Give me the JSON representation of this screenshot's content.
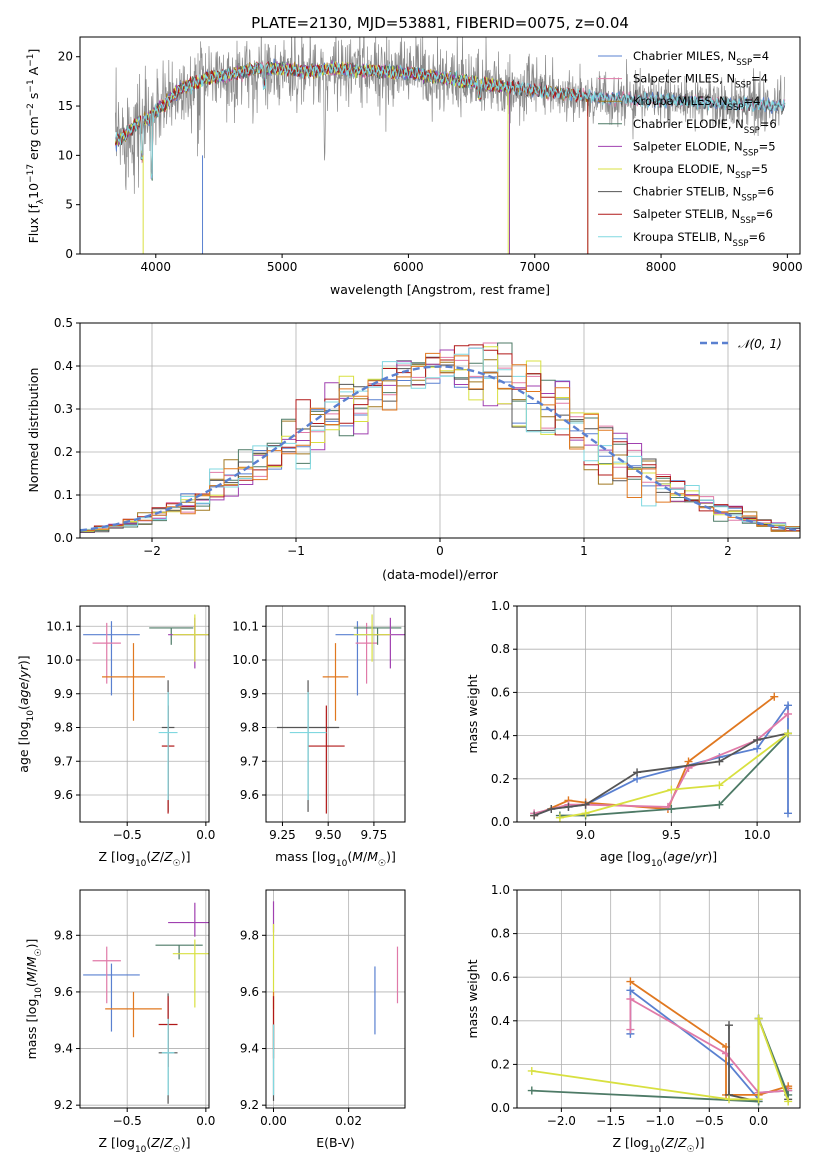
{
  "figure_title": "PLATE=2130, MJD=53881, FIBERID=0075, z=0.04",
  "colors": {
    "chabrier_miles": "#5a80d0",
    "salpeter_miles": "#e07aa8",
    "kroupa_miles": "#a07820",
    "chabrier_elodie": "#4d7a66",
    "salpeter_elodie": "#a040b0",
    "kroupa_elodie": "#d8e040",
    "chabrier_stelib": "#555555",
    "salpeter_stelib": "#b01818",
    "kroupa_stelib": "#80d8e0",
    "orange": "#e07820",
    "yellowgreen": "#b8d850",
    "gray_spectrum": "#8a8a8a"
  },
  "chart_data": [
    {
      "id": "spectrum",
      "type": "line",
      "title": "PLATE=2130, MJD=53881, FIBERID=0075, z=0.04",
      "xlabel": "wavelength [Angstrom, rest frame]",
      "ylabel": "Flux [f_λ 10^-17 erg cm^-2 s^-1 A^-1]",
      "xlim": [
        3400,
        9100
      ],
      "ylim": [
        0,
        22
      ],
      "xticks": [
        4000,
        5000,
        6000,
        7000,
        8000,
        9000
      ],
      "yticks": [
        0,
        5,
        10,
        15,
        20
      ],
      "legend_position": "top-right",
      "legend": [
        {
          "label": "Chabrier MILES, N_SSP=4",
          "color_key": "chabrier_miles"
        },
        {
          "label": "Salpeter MILES, N_SSP=4",
          "color_key": "salpeter_miles"
        },
        {
          "label": "Kroupa MILES, N_SSP=4",
          "color_key": "kroupa_miles"
        },
        {
          "label": "Chabrier ELODIE, N_SSP=6",
          "color_key": "chabrier_elodie"
        },
        {
          "label": "Salpeter ELODIE, N_SSP=5",
          "color_key": "salpeter_elodie"
        },
        {
          "label": "Kroupa ELODIE, N_SSP=5",
          "color_key": "kroupa_elodie"
        },
        {
          "label": "Chabrier STELIB, N_SSP=6",
          "color_key": "chabrier_stelib"
        },
        {
          "label": "Salpeter STELIB, N_SSP=6",
          "color_key": "salpeter_stelib"
        },
        {
          "label": "Kroupa STELIB, N_SSP=6",
          "color_key": "kroupa_stelib"
        }
      ],
      "continuum": {
        "x": [
          3680,
          3750,
          3850,
          3950,
          4050,
          4200,
          4400,
          4600,
          4800,
          5000,
          5200,
          5400,
          5600,
          5800,
          6000,
          6200,
          6400,
          6600,
          6800,
          7000,
          7200,
          7400,
          7600,
          7800,
          8000,
          8200,
          8400,
          8600,
          8800,
          8980
        ],
        "y": [
          11.5,
          12.0,
          13.2,
          13.8,
          15.0,
          16.8,
          17.8,
          18.2,
          18.8,
          18.8,
          18.5,
          18.8,
          18.6,
          18.5,
          18.4,
          18.0,
          17.6,
          17.2,
          16.9,
          16.6,
          16.3,
          16.0,
          15.8,
          15.7,
          15.6,
          15.5,
          15.3,
          15.2,
          15.1,
          15.0
        ]
      },
      "model_cutoffs": [
        {
          "series": "Salpeter STELIB / Kroupa MILES",
          "x": 7420
        },
        {
          "series": "Chabrier ELODIE",
          "x": 6800
        },
        {
          "series": "Kroupa ELODIE",
          "x": 6790
        },
        {
          "series": "Chabrier MILES",
          "x": 4370
        },
        {
          "series": "Kroupa ELODIE",
          "x": 3900
        }
      ]
    },
    {
      "id": "residuals",
      "type": "line",
      "xlabel": "(data-model)/error",
      "ylabel": "Normed distribution",
      "xlim": [
        -2.5,
        2.5
      ],
      "ylim": [
        0,
        0.5
      ],
      "xticks": [
        -2,
        -1,
        0,
        1,
        2
      ],
      "yticks": [
        0.0,
        0.1,
        0.2,
        0.3,
        0.4,
        0.5
      ],
      "legend_position": "top-right",
      "legend": [
        {
          "label": "𝒩(0, 1)",
          "color_key": "chabrier_miles",
          "style": "dashed"
        }
      ],
      "grid": true,
      "normal_curve": {
        "mean": 0,
        "sigma": 1
      },
      "histogram_bin_width": 0.1
    },
    {
      "id": "age_vs_Z",
      "type": "scatter",
      "xlabel": "Z [log10(Z/Z☉)]",
      "ylabel": "age  [log10(age/yr)]",
      "xlim": [
        -0.8,
        0.02
      ],
      "ylim": [
        9.52,
        10.16
      ],
      "xticks": [
        -0.5,
        0.0
      ],
      "yticks": [
        9.6,
        9.7,
        9.8,
        9.9,
        10.0,
        10.1
      ],
      "grid": true,
      "points": [
        {
          "x": -0.6,
          "y": 10.075,
          "xerr": 0.18,
          "yerr_lo": 0.18,
          "yerr_hi": 0.04,
          "color_key": "chabrier_miles"
        },
        {
          "x": -0.63,
          "y": 10.05,
          "xerr": 0.09,
          "yerr_lo": 0.12,
          "yerr_hi": 0.06,
          "color_key": "salpeter_miles"
        },
        {
          "x": -0.46,
          "y": 9.95,
          "xerr": 0.2,
          "yerr_lo": 0.13,
          "yerr_hi": 0.1,
          "color_key": "orange"
        },
        {
          "x": -0.22,
          "y": 10.095,
          "xerr": 0.14,
          "yerr_lo": 0.05,
          "yerr_hi": 0.0,
          "color_key": "chabrier_elodie"
        },
        {
          "x": -0.07,
          "y": 10.075,
          "xerr": 0.17,
          "yerr_lo": 0.1,
          "yerr_hi": 0.05,
          "color_key": "salpeter_elodie"
        },
        {
          "x": -0.07,
          "y": 10.075,
          "xerr": 0.14,
          "yerr_lo": 0.08,
          "yerr_hi": 0.06,
          "color_key": "kroupa_elodie"
        },
        {
          "x": -0.24,
          "y": 9.8,
          "xerr": 0.04,
          "yerr_lo": 0.25,
          "yerr_hi": 0.14,
          "color_key": "chabrier_stelib"
        },
        {
          "x": -0.24,
          "y": 9.745,
          "xerr": 0.04,
          "yerr_lo": 0.2,
          "yerr_hi": 0.12,
          "color_key": "salpeter_stelib"
        },
        {
          "x": -0.24,
          "y": 9.785,
          "xerr": 0.06,
          "yerr_lo": 0.2,
          "yerr_hi": 0.12,
          "color_key": "kroupa_stelib"
        }
      ]
    },
    {
      "id": "age_vs_mass",
      "type": "scatter",
      "xlabel": "mass [log10(M/M☉)]",
      "ylabel": "",
      "xlim": [
        9.16,
        9.92
      ],
      "ylim": [
        9.52,
        10.16
      ],
      "xticks": [
        9.25,
        9.5,
        9.75
      ],
      "yticks": [
        9.6,
        9.7,
        9.8,
        9.9,
        10.0,
        10.1
      ],
      "grid": true,
      "points": [
        {
          "x": 9.66,
          "y": 10.075,
          "xerr": 0.12,
          "yerr_lo": 0.18,
          "yerr_hi": 0.04,
          "color_key": "chabrier_miles"
        },
        {
          "x": 9.71,
          "y": 10.05,
          "xerr": 0.06,
          "yerr_lo": 0.12,
          "yerr_hi": 0.06,
          "color_key": "salpeter_miles"
        },
        {
          "x": 9.54,
          "y": 9.95,
          "xerr": 0.07,
          "yerr_lo": 0.13,
          "yerr_hi": 0.1,
          "color_key": "orange"
        },
        {
          "x": 9.77,
          "y": 10.095,
          "xerr": 0.13,
          "yerr_lo": 0.05,
          "yerr_hi": 0.0,
          "color_key": "chabrier_elodie"
        },
        {
          "x": 9.84,
          "y": 10.075,
          "xerr": 0.09,
          "yerr_lo": 0.1,
          "yerr_hi": 0.05,
          "color_key": "salpeter_elodie"
        },
        {
          "x": 9.74,
          "y": 10.075,
          "xerr": 0.1,
          "yerr_lo": 0.08,
          "yerr_hi": 0.06,
          "color_key": "kroupa_elodie"
        },
        {
          "x": 9.39,
          "y": 9.8,
          "xerr": 0.17,
          "yerr_lo": 0.25,
          "yerr_hi": 0.14,
          "color_key": "chabrier_stelib"
        },
        {
          "x": 9.49,
          "y": 9.745,
          "xerr": 0.1,
          "yerr_lo": 0.2,
          "yerr_hi": 0.12,
          "color_key": "salpeter_stelib"
        },
        {
          "x": 9.39,
          "y": 9.785,
          "xerr": 0.1,
          "yerr_lo": 0.2,
          "yerr_hi": 0.12,
          "color_key": "kroupa_stelib"
        }
      ]
    },
    {
      "id": "weight_vs_age",
      "type": "line",
      "xlabel": "age  [log10(age/yr)]",
      "ylabel": "mass weight",
      "xlim": [
        8.6,
        10.25
      ],
      "ylim": [
        0,
        1.0
      ],
      "xticks": [
        9.0,
        9.5,
        10.0
      ],
      "yticks": [
        0.0,
        0.2,
        0.4,
        0.6,
        0.8,
        1.0
      ],
      "grid": true,
      "series": [
        {
          "color_key": "chabrier_miles",
          "x": [
            8.7,
            8.8,
            8.9,
            9.0,
            9.3,
            9.78,
            10.0,
            10.18,
            10.18
          ],
          "y": [
            0.03,
            0.06,
            0.07,
            0.08,
            0.2,
            0.3,
            0.34,
            0.54,
            0.04
          ]
        },
        {
          "color_key": "orange",
          "x": [
            8.7,
            8.9,
            9.0,
            9.48,
            9.6,
            10.1
          ],
          "y": [
            0.03,
            0.1,
            0.09,
            0.06,
            0.28,
            0.58
          ]
        },
        {
          "color_key": "salpeter_miles",
          "x": [
            8.7,
            8.9,
            9.0,
            9.48,
            9.6,
            10.0,
            10.18
          ],
          "y": [
            0.04,
            0.08,
            0.08,
            0.07,
            0.25,
            0.38,
            0.5
          ]
        },
        {
          "color_key": "chabrier_stelib",
          "x": [
            8.7,
            8.8,
            8.9,
            9.0,
            9.3,
            9.78,
            10.0,
            10.18
          ],
          "y": [
            0.03,
            0.06,
            0.07,
            0.08,
            0.23,
            0.28,
            0.38,
            0.41
          ]
        },
        {
          "color_key": "chabrier_elodie",
          "x": [
            8.85,
            9.0,
            9.5,
            9.78,
            10.18
          ],
          "y": [
            0.03,
            0.03,
            0.06,
            0.08,
            0.41
          ]
        },
        {
          "color_key": "kroupa_elodie",
          "x": [
            8.85,
            9.0,
            9.5,
            9.78,
            10.18
          ],
          "y": [
            0.02,
            0.04,
            0.15,
            0.17,
            0.41
          ]
        }
      ]
    },
    {
      "id": "mass_vs_Z",
      "type": "scatter",
      "xlabel": "Z [log10(Z/Z☉)]",
      "ylabel": "mass [log10(M/M☉)]",
      "xlim": [
        -0.8,
        0.02
      ],
      "ylim": [
        9.19,
        9.96
      ],
      "xticks": [
        -0.5,
        0.0
      ],
      "yticks": [
        9.2,
        9.4,
        9.6,
        9.8
      ],
      "grid": true,
      "points": [
        {
          "x": -0.6,
          "y": 9.66,
          "xerr": 0.18,
          "yerr_lo": 0.2,
          "yerr_hi": 0.04,
          "color_key": "chabrier_miles"
        },
        {
          "x": -0.63,
          "y": 9.71,
          "xerr": 0.09,
          "yerr_lo": 0.15,
          "yerr_hi": 0.05,
          "color_key": "salpeter_miles"
        },
        {
          "x": -0.46,
          "y": 9.54,
          "xerr": 0.18,
          "yerr_lo": 0.1,
          "yerr_hi": 0.06,
          "color_key": "orange"
        },
        {
          "x": -0.17,
          "y": 9.765,
          "xerr": 0.15,
          "yerr_lo": 0.05,
          "yerr_hi": 0.0,
          "color_key": "chabrier_elodie"
        },
        {
          "x": -0.07,
          "y": 9.845,
          "xerr": 0.17,
          "yerr_lo": 0.05,
          "yerr_hi": 0.07,
          "color_key": "salpeter_elodie"
        },
        {
          "x": -0.07,
          "y": 9.735,
          "xerr": 0.14,
          "yerr_lo": 0.19,
          "yerr_hi": 0.05,
          "color_key": "kroupa_elodie"
        },
        {
          "x": -0.24,
          "y": 9.385,
          "xerr": 0.06,
          "yerr_lo": 0.18,
          "yerr_hi": 0.21,
          "color_key": "chabrier_stelib"
        },
        {
          "x": -0.24,
          "y": 9.485,
          "xerr": 0.06,
          "yerr_lo": 0.15,
          "yerr_hi": 0.1,
          "color_key": "salpeter_stelib"
        },
        {
          "x": -0.24,
          "y": 9.385,
          "xerr": 0.04,
          "yerr_lo": 0.15,
          "yerr_hi": 0.12,
          "color_key": "kroupa_stelib"
        }
      ]
    },
    {
      "id": "mass_vs_ebv",
      "type": "scatter",
      "xlabel": "E(B-V)",
      "ylabel": "",
      "xlim": [
        -0.002,
        0.035
      ],
      "ylim": [
        9.19,
        9.96
      ],
      "xticks": [
        0.0,
        0.02
      ],
      "yticks": [
        9.2,
        9.4,
        9.6,
        9.8
      ],
      "grid": true,
      "points": [
        {
          "x": 0.027,
          "y": 9.57,
          "yerr_lo": 0.12,
          "yerr_hi": 0.12,
          "color_key": "chabrier_miles"
        },
        {
          "x": 0.033,
          "y": 9.66,
          "yerr_lo": 0.1,
          "yerr_hi": 0.1,
          "color_key": "salpeter_miles"
        },
        {
          "x": 0.0,
          "y": 9.86,
          "yerr_lo": 0.05,
          "yerr_hi": 0.06,
          "color_key": "salpeter_elodie"
        },
        {
          "x": 0.0,
          "y": 9.71,
          "yerr_lo": 0.17,
          "yerr_hi": 0.13,
          "color_key": "kroupa_elodie"
        },
        {
          "x": 0.0,
          "y": 9.5,
          "yerr_lo": 0.1,
          "yerr_hi": 0.1,
          "color_key": "orange"
        },
        {
          "x": 0.0,
          "y": 9.485,
          "yerr_lo": 0.12,
          "yerr_hi": 0.1,
          "color_key": "salpeter_stelib"
        },
        {
          "x": 0.0,
          "y": 9.385,
          "yerr_lo": 0.17,
          "yerr_hi": 0.1,
          "color_key": "chabrier_stelib"
        },
        {
          "x": 0.0,
          "y": 9.385,
          "yerr_lo": 0.15,
          "yerr_hi": 0.1,
          "color_key": "kroupa_stelib"
        }
      ]
    },
    {
      "id": "weight_vs_Z",
      "type": "line",
      "xlabel": "Z [log10(Z/Z☉)]",
      "ylabel": "mass weight",
      "xlim": [
        -2.45,
        0.42
      ],
      "ylim": [
        0,
        1.0
      ],
      "xticks": [
        -2.0,
        -1.5,
        -1.0,
        -0.5,
        0.0
      ],
      "yticks": [
        0.0,
        0.2,
        0.4,
        0.6,
        0.8,
        1.0
      ],
      "grid": true,
      "series": [
        {
          "color_key": "chabrier_miles",
          "x": [
            -1.3,
            -1.3,
            -0.3,
            0.0,
            0.0,
            0.3
          ],
          "y": [
            0.34,
            0.54,
            0.2,
            0.04,
            0.07,
            0.08
          ]
        },
        {
          "color_key": "orange",
          "x": [
            -1.3,
            -0.33,
            -0.33,
            0.0,
            0.3,
            0.3
          ],
          "y": [
            0.58,
            0.28,
            0.06,
            0.06,
            0.1,
            0.09
          ]
        },
        {
          "color_key": "salpeter_miles",
          "x": [
            -1.3,
            -1.3,
            -0.33,
            0.0,
            0.3
          ],
          "y": [
            0.36,
            0.5,
            0.25,
            0.07,
            0.08
          ]
        },
        {
          "color_key": "chabrier_stelib",
          "x": [
            -0.3,
            -0.3,
            0.0,
            0.0,
            0.3
          ],
          "y": [
            0.38,
            0.06,
            0.03,
            0.41,
            0.04
          ]
        },
        {
          "color_key": "chabrier_elodie",
          "x": [
            -2.3,
            0.0,
            0.0,
            0.3
          ],
          "y": [
            0.08,
            0.03,
            0.41,
            0.06
          ]
        },
        {
          "color_key": "kroupa_elodie",
          "x": [
            -2.3,
            -0.3,
            0.0,
            0.0,
            0.3
          ],
          "y": [
            0.17,
            0.04,
            0.04,
            0.41,
            0.03
          ]
        }
      ]
    }
  ]
}
